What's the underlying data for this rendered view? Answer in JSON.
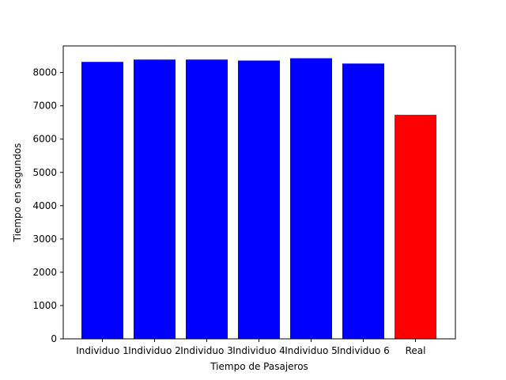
{
  "chart_data": {
    "type": "bar",
    "title": "",
    "xlabel": "Tiempo de Pasajeros",
    "ylabel": "Tiempo en segundos",
    "categories": [
      "Individuo 1",
      "Individuo 2",
      "Individuo 3",
      "Individuo 4",
      "Individuo 5",
      "Individuo 6",
      "Real"
    ],
    "values": [
      8320,
      8390,
      8390,
      8360,
      8430,
      8270,
      6730
    ],
    "colors": [
      "#0000ff",
      "#0000ff",
      "#0000ff",
      "#0000ff",
      "#0000ff",
      "#0000ff",
      "#ff0000"
    ],
    "ylim": [
      0,
      8800
    ],
    "yticks": [
      0,
      1000,
      2000,
      3000,
      4000,
      5000,
      6000,
      7000,
      8000
    ],
    "grid": false,
    "legend": "none"
  }
}
